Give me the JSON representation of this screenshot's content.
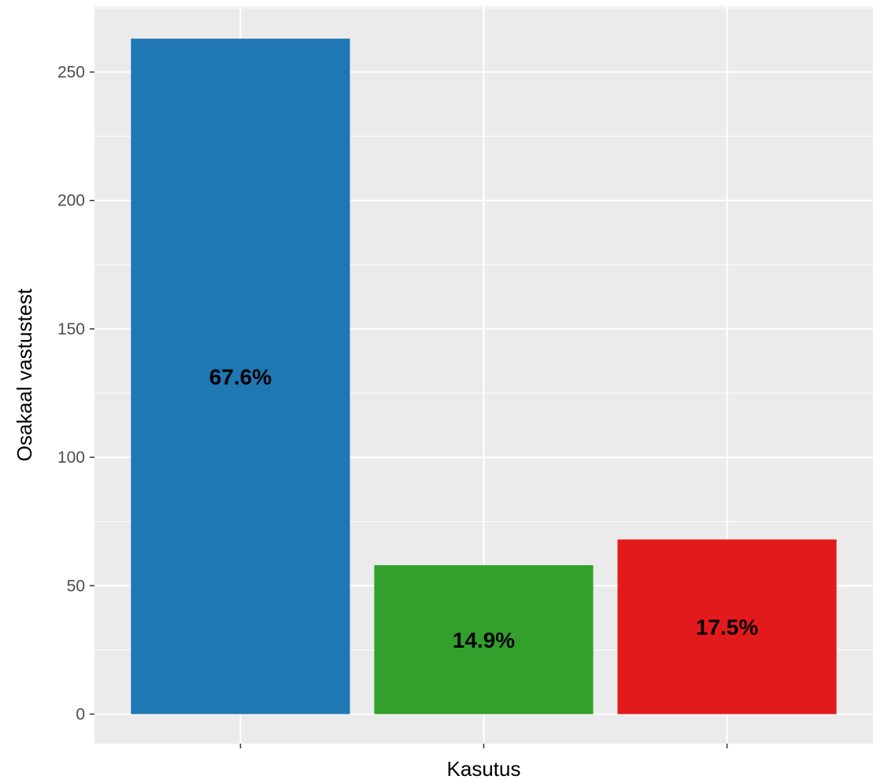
{
  "chart_data": {
    "type": "bar",
    "title": "",
    "xlabel": "Kasutus",
    "ylabel": "Osakaal vastustest",
    "categories": [
      "",
      "",
      ""
    ],
    "values": [
      263,
      58,
      68
    ],
    "data_labels": [
      "67.6%",
      "14.9%",
      "17.5%"
    ],
    "colors": [
      "#1f77b4",
      "#33a02c",
      "#e31a1c"
    ],
    "ylim": [
      -11.5,
      275.6
    ],
    "y_ticks": [
      0,
      50,
      100,
      150,
      200,
      250
    ],
    "grid": true,
    "legend": "none",
    "panel_background": "#ebebeb",
    "grid_color": "#ffffff"
  }
}
